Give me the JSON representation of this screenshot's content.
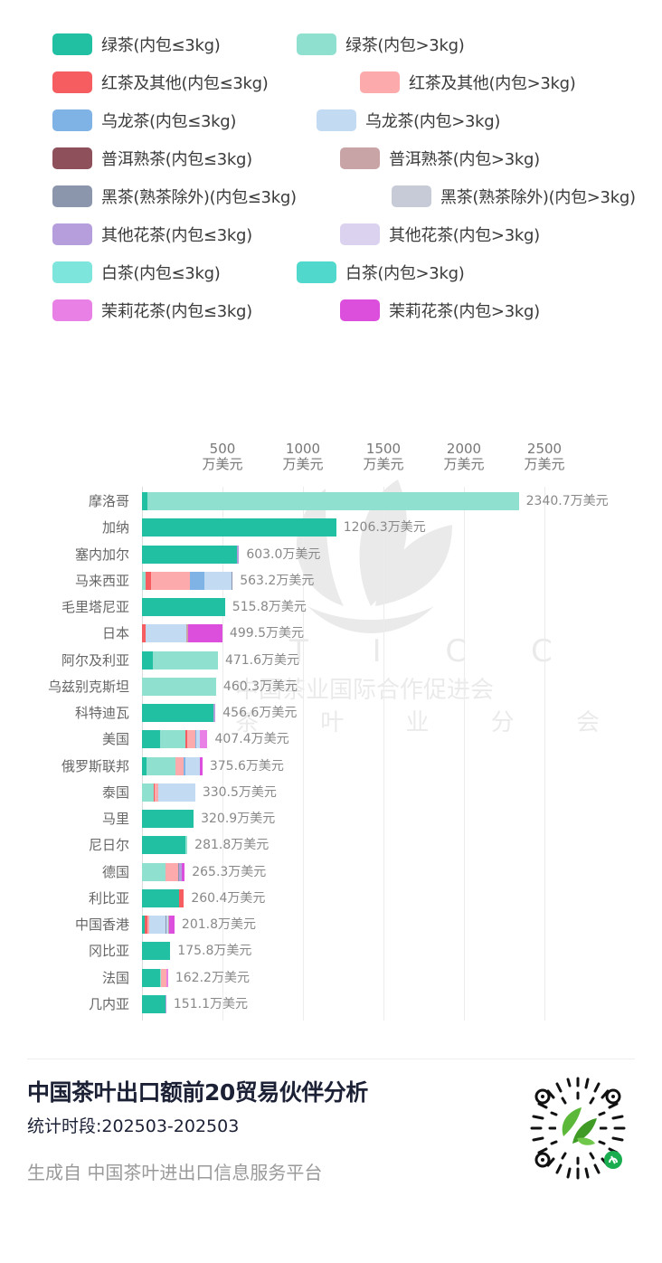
{
  "legend": [
    {
      "label": "绿茶(内包≤3kg)",
      "color": "#22c0a3"
    },
    {
      "label": "绿茶(内包>3kg)",
      "color": "#8fe0cf"
    },
    {
      "label": "红茶及其他(内包≤3kg)",
      "color": "#f65d60"
    },
    {
      "label": "红茶及其他(内包>3kg)",
      "color": "#fcaaab"
    },
    {
      "label": "乌龙茶(内包≤3kg)",
      "color": "#7fb2e5"
    },
    {
      "label": "乌龙茶(内包>3kg)",
      "color": "#c3daf3"
    },
    {
      "label": "普洱熟茶(内包≤3kg)",
      "color": "#8e515b"
    },
    {
      "label": "普洱熟茶(内包>3kg)",
      "color": "#c8a4a6"
    },
    {
      "label": "黑茶(熟茶除外)(内包≤3kg)",
      "color": "#8b96ad"
    },
    {
      "label": "黑茶(熟茶除外)(内包>3kg)",
      "color": "#c6cbd7"
    },
    {
      "label": "其他花茶(内包≤3kg)",
      "color": "#b69edd"
    },
    {
      "label": "其他花茶(内包>3kg)",
      "color": "#dbd2ef"
    },
    {
      "label": "白茶(内包≤3kg)",
      "color": "#7ee5dc"
    },
    {
      "label": "白茶(内包>3kg)",
      "color": "#4fd8cb"
    },
    {
      "label": "茉莉花茶(内包≤3kg)",
      "color": "#e980e6"
    },
    {
      "label": "茉莉花茶(内包>3kg)",
      "color": "#db4fdc"
    }
  ],
  "chart_data": {
    "type": "bar",
    "orientation": "horizontal",
    "stacked": true,
    "title": "中国茶叶出口额前20贸易伙伴分析",
    "xlabel": "万美元",
    "ylabel": "",
    "xlim": [
      0,
      2700
    ],
    "x_ticks": [
      {
        "value": 500,
        "line1": "500",
        "line2": "万美元"
      },
      {
        "value": 1000,
        "line1": "1000",
        "line2": "万美元"
      },
      {
        "value": 1500,
        "line1": "1500",
        "line2": "万美元"
      },
      {
        "value": 2000,
        "line1": "2000",
        "line2": "万美元"
      },
      {
        "value": 2500,
        "line1": "2500",
        "line2": "万美元"
      }
    ],
    "grid": true,
    "legend_position": "top",
    "value_suffix": "万美元",
    "categories": [
      "摩洛哥",
      "加纳",
      "塞内加尔",
      "马来西亚",
      "毛里塔尼亚",
      "日本",
      "阿尔及利亚",
      "乌兹别克斯坦",
      "科特迪瓦",
      "美国",
      "俄罗斯联邦",
      "泰国",
      "马里",
      "尼日尔",
      "德国",
      "利比亚",
      "中国香港",
      "冈比亚",
      "法国",
      "几内亚"
    ],
    "totals": [
      2340.7,
      1206.3,
      603.0,
      563.2,
      515.8,
      499.5,
      471.6,
      460.3,
      456.6,
      407.4,
      375.6,
      330.5,
      320.9,
      281.8,
      265.3,
      260.4,
      201.8,
      175.8,
      162.2,
      151.1
    ],
    "total_labels": [
      "2340.7万美元",
      "1206.3万美元",
      "603.0万美元",
      "563.2万美元",
      "515.8万美元",
      "499.5万美元",
      "471.6万美元",
      "460.3万美元",
      "456.6万美元",
      "407.4万美元",
      "375.6万美元",
      "330.5万美元",
      "320.9万美元",
      "281.8万美元",
      "265.3万美元",
      "260.4万美元",
      "201.8万美元",
      "175.8万美元",
      "162.2万美元",
      "151.1万美元"
    ],
    "segments_estimated": [
      [
        {
          "series": 0,
          "value": 35
        },
        {
          "series": 1,
          "value": 2305.7
        }
      ],
      [
        {
          "series": 0,
          "value": 1206.3
        }
      ],
      [
        {
          "series": 0,
          "value": 590
        },
        {
          "series": 10,
          "value": 13
        }
      ],
      [
        {
          "series": 1,
          "value": 20
        },
        {
          "series": 2,
          "value": 35
        },
        {
          "series": 3,
          "value": 245
        },
        {
          "series": 4,
          "value": 90
        },
        {
          "series": 5,
          "value": 165
        },
        {
          "series": 8,
          "value": 8.2
        }
      ],
      [
        {
          "series": 0,
          "value": 515.8
        }
      ],
      [
        {
          "series": 2,
          "value": 20
        },
        {
          "series": 5,
          "value": 255
        },
        {
          "series": 7,
          "value": 14
        },
        {
          "series": 15,
          "value": 210.5
        }
      ],
      [
        {
          "series": 0,
          "value": 65
        },
        {
          "series": 1,
          "value": 406.6
        }
      ],
      [
        {
          "series": 1,
          "value": 460.3
        }
      ],
      [
        {
          "series": 0,
          "value": 443
        },
        {
          "series": 10,
          "value": 13.6
        }
      ],
      [
        {
          "series": 0,
          "value": 110
        },
        {
          "series": 1,
          "value": 162
        },
        {
          "series": 2,
          "value": 8
        },
        {
          "series": 3,
          "value": 50
        },
        {
          "series": 4,
          "value": 10
        },
        {
          "series": 5,
          "value": 22
        },
        {
          "series": 14,
          "value": 45.4
        }
      ],
      [
        {
          "series": 0,
          "value": 30
        },
        {
          "series": 1,
          "value": 180
        },
        {
          "series": 3,
          "value": 50
        },
        {
          "series": 4,
          "value": 10
        },
        {
          "series": 5,
          "value": 90
        },
        {
          "series": 15,
          "value": 15.6
        }
      ],
      [
        {
          "series": 1,
          "value": 75
        },
        {
          "series": 2,
          "value": 5
        },
        {
          "series": 3,
          "value": 20
        },
        {
          "series": 5,
          "value": 230.5
        }
      ],
      [
        {
          "series": 0,
          "value": 320.9
        }
      ],
      [
        {
          "series": 0,
          "value": 272
        },
        {
          "series": 1,
          "value": 9.8
        }
      ],
      [
        {
          "series": 1,
          "value": 145
        },
        {
          "series": 3,
          "value": 80
        },
        {
          "series": 8,
          "value": 8
        },
        {
          "series": 10,
          "value": 12
        },
        {
          "series": 15,
          "value": 20.3
        }
      ],
      [
        {
          "series": 0,
          "value": 228
        },
        {
          "series": 2,
          "value": 32.4
        }
      ],
      [
        {
          "series": 0,
          "value": 15
        },
        {
          "series": 2,
          "value": 20
        },
        {
          "series": 3,
          "value": 10
        },
        {
          "series": 5,
          "value": 100
        },
        {
          "series": 8,
          "value": 6
        },
        {
          "series": 5,
          "value": 15
        },
        {
          "series": 7,
          "value": 5
        },
        {
          "series": 15,
          "value": 30.8
        }
      ],
      [
        {
          "series": 0,
          "value": 175.8
        }
      ],
      [
        {
          "series": 0,
          "value": 110
        },
        {
          "series": 1,
          "value": 10
        },
        {
          "series": 3,
          "value": 30
        },
        {
          "series": 14,
          "value": 12.2
        }
      ],
      [
        {
          "series": 0,
          "value": 146
        },
        {
          "series": 10,
          "value": 5.1
        }
      ]
    ]
  },
  "watermark": {
    "line1": "T I C C",
    "line2": "中国茶业国际合作促进会",
    "line3": "茶 叶 业 分 会"
  },
  "footer": {
    "title": "中国茶叶出口额前20贸易伙伴分析",
    "period": "统计时段:202503-202503",
    "source": "生成自 中国茶叶进出口信息服务平台"
  },
  "qr_code": {
    "icon": "mini-program-qr-code-icon"
  }
}
